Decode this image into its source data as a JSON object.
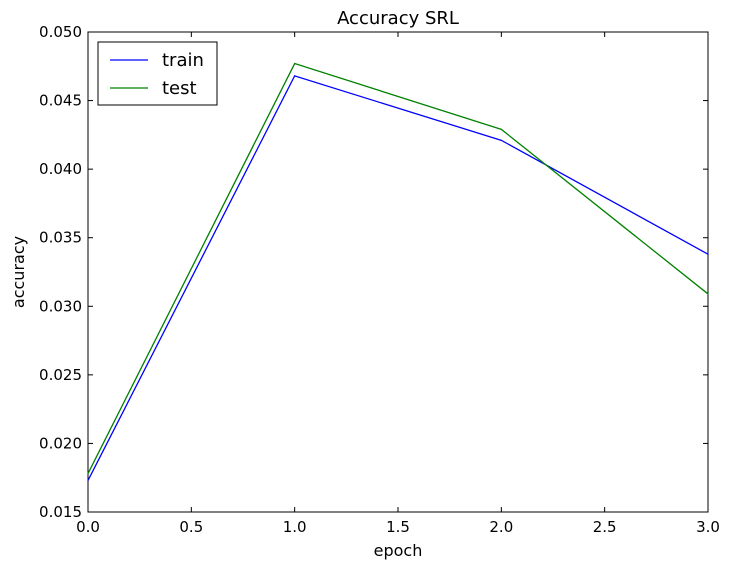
{
  "chart_data": {
    "type": "line",
    "title": "Accuracy SRL",
    "xlabel": "epoch",
    "ylabel": "accuracy",
    "xlim": [
      0.0,
      3.0
    ],
    "ylim": [
      0.015,
      0.05
    ],
    "x_ticks": [
      "0.0",
      "0.5",
      "1.0",
      "1.5",
      "2.0",
      "2.5",
      "3.0"
    ],
    "y_ticks": [
      "0.015",
      "0.020",
      "0.025",
      "0.030",
      "0.035",
      "0.040",
      "0.045",
      "0.050"
    ],
    "grid": false,
    "legend_position": "top-left",
    "x": [
      0,
      1,
      2,
      3
    ],
    "series": [
      {
        "name": "train",
        "color": "#0000ff",
        "values": [
          0.0173,
          0.0468,
          0.0421,
          0.0338
        ]
      },
      {
        "name": "test",
        "color": "#008000",
        "values": [
          0.0178,
          0.0477,
          0.0429,
          0.0309
        ]
      }
    ]
  }
}
